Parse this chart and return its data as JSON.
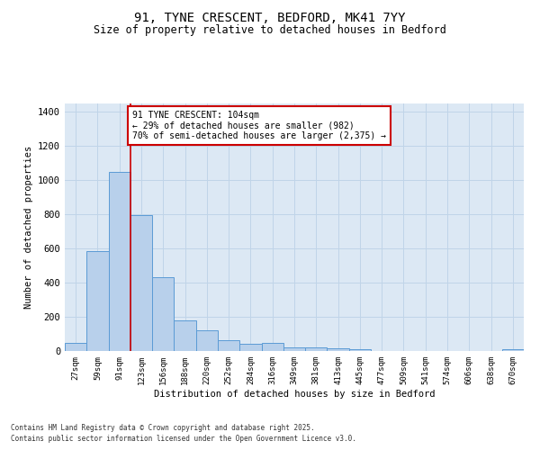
{
  "title1": "91, TYNE CRESCENT, BEDFORD, MK41 7YY",
  "title2": "Size of property relative to detached houses in Bedford",
  "xlabel": "Distribution of detached houses by size in Bedford",
  "ylabel": "Number of detached properties",
  "categories": [
    "27sqm",
    "59sqm",
    "91sqm",
    "123sqm",
    "156sqm",
    "188sqm",
    "220sqm",
    "252sqm",
    "284sqm",
    "316sqm",
    "349sqm",
    "381sqm",
    "413sqm",
    "445sqm",
    "477sqm",
    "509sqm",
    "541sqm",
    "574sqm",
    "606sqm",
    "638sqm",
    "670sqm"
  ],
  "values": [
    47,
    585,
    1047,
    795,
    430,
    180,
    120,
    65,
    42,
    47,
    23,
    22,
    14,
    10,
    0,
    0,
    0,
    0,
    0,
    0,
    10
  ],
  "bar_color": "#b8d0eb",
  "bar_edge_color": "#5b9bd5",
  "red_line_x": 2,
  "annotation_text": "91 TYNE CRESCENT: 104sqm\n← 29% of detached houses are smaller (982)\n70% of semi-detached houses are larger (2,375) →",
  "annotation_box_color": "#ffffff",
  "annotation_box_edge": "#cc0000",
  "red_line_color": "#cc0000",
  "grid_color": "#c0d4e8",
  "bg_color": "#dce8f4",
  "ylim": [
    0,
    1450
  ],
  "yticks": [
    0,
    200,
    400,
    600,
    800,
    1000,
    1200,
    1400
  ],
  "footer1": "Contains HM Land Registry data © Crown copyright and database right 2025.",
  "footer2": "Contains public sector information licensed under the Open Government Licence v3.0."
}
